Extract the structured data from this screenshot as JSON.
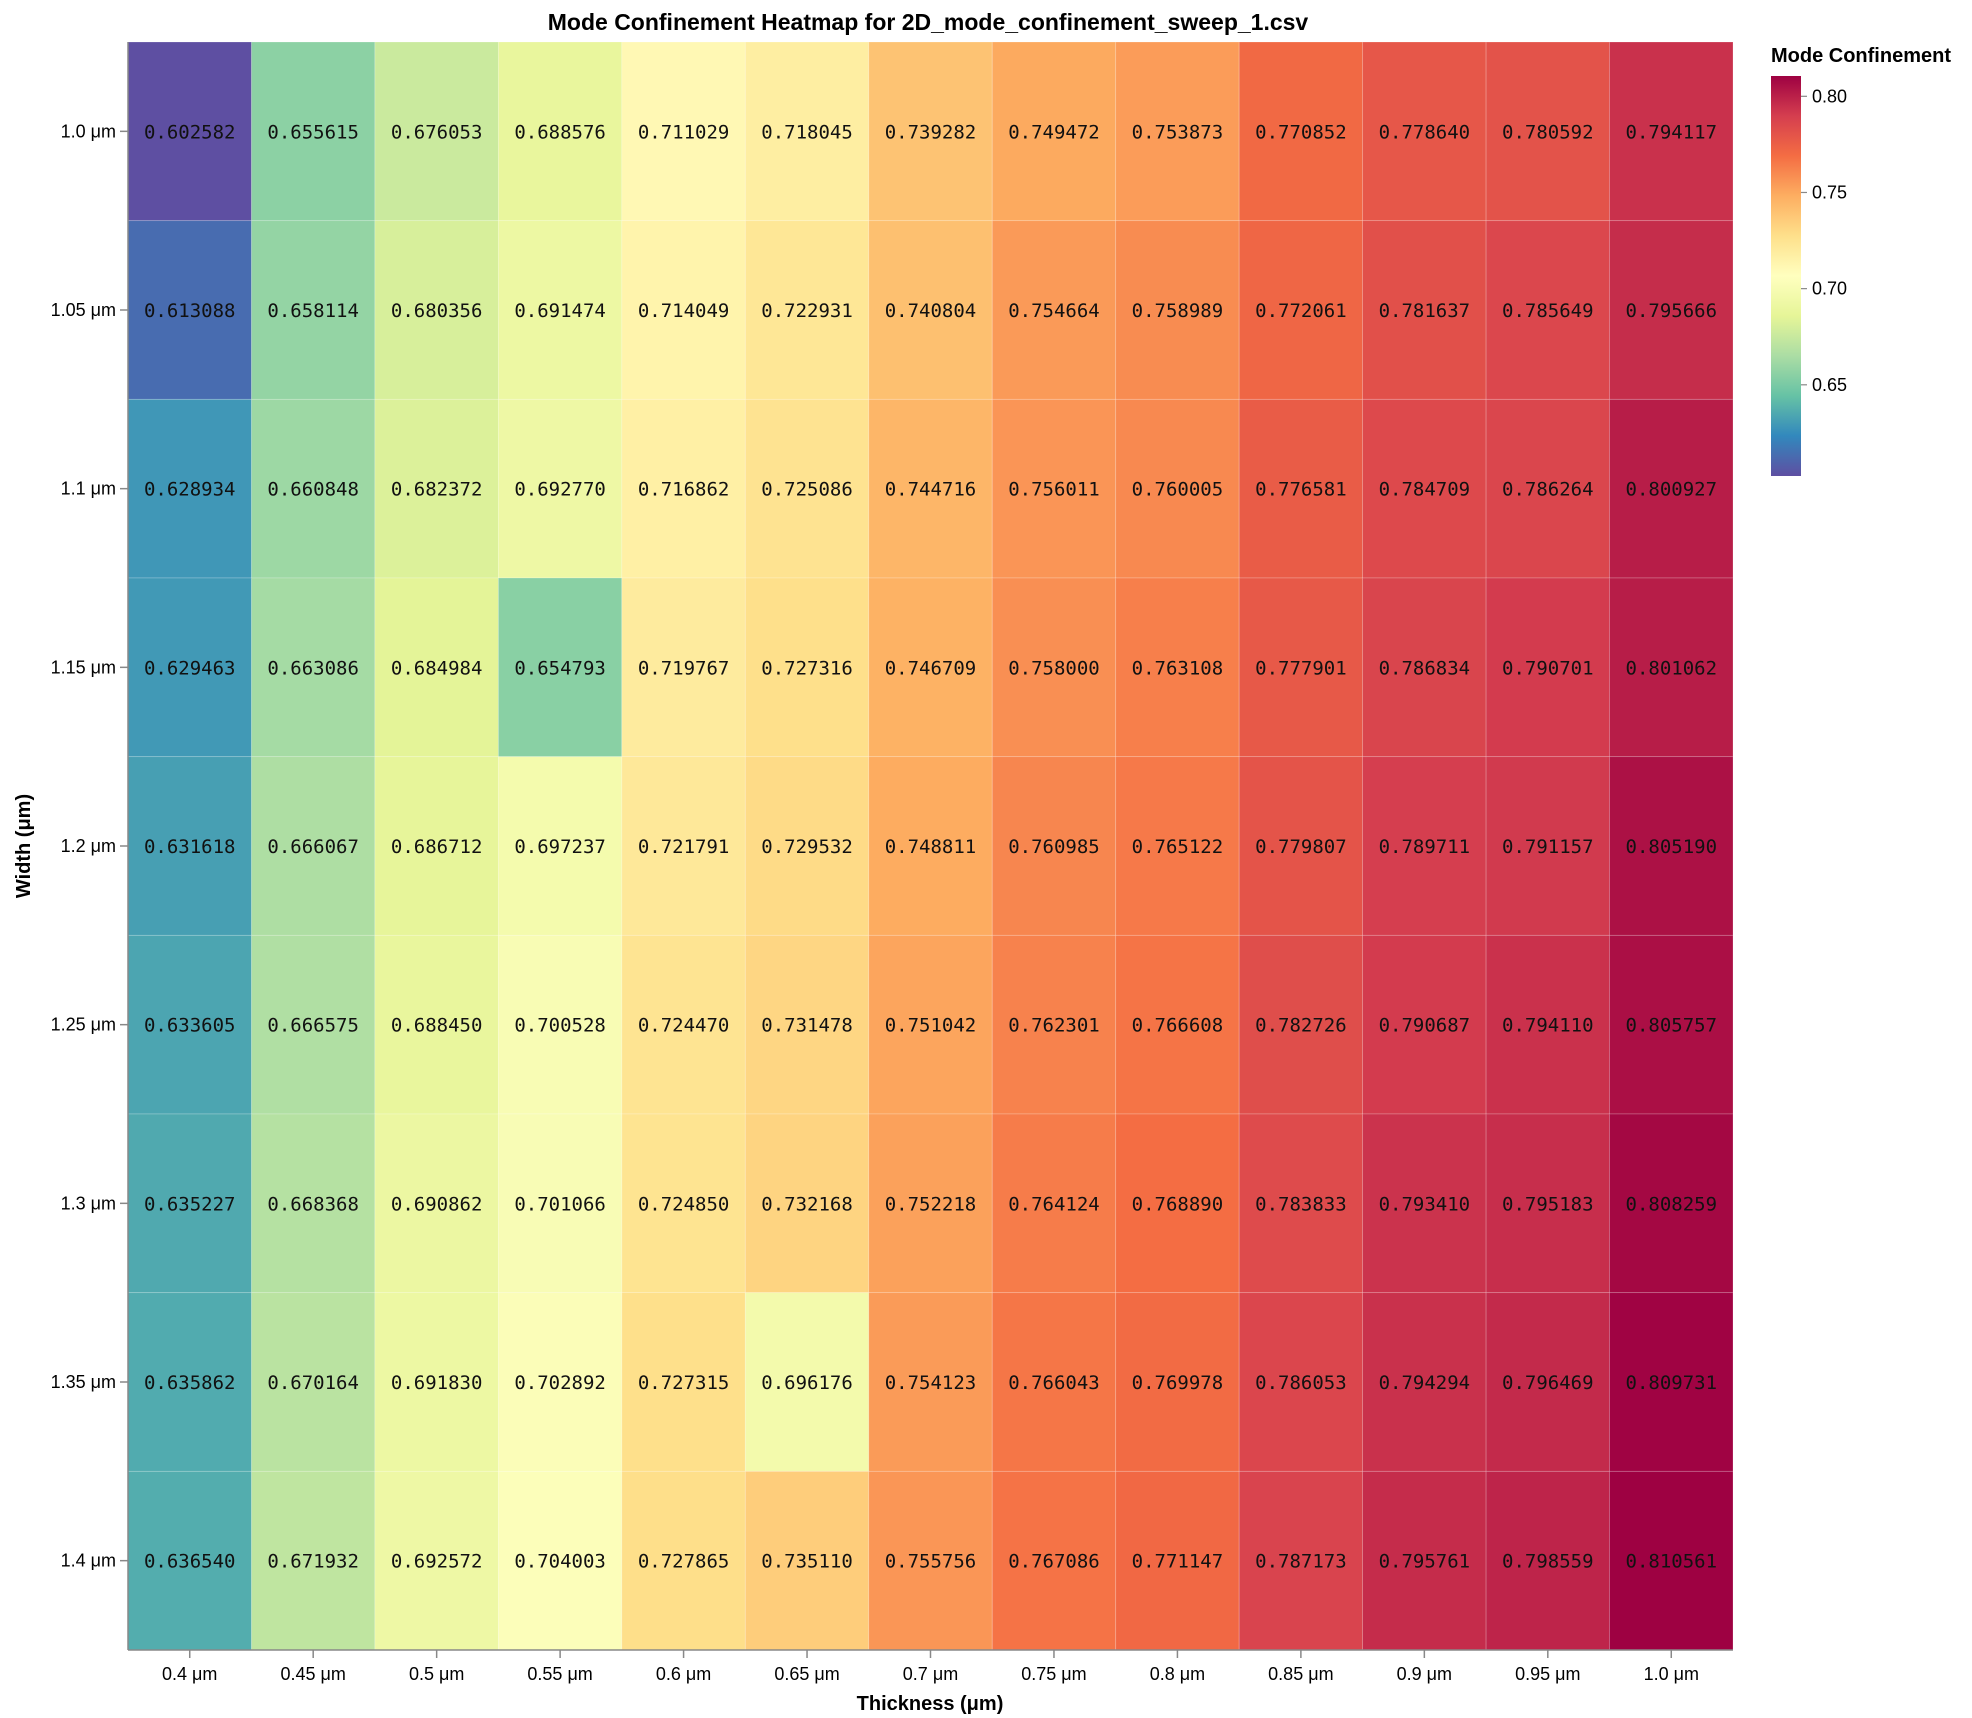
{
  "chart_data": {
    "type": "heatmap",
    "title": "Mode Confinement Heatmap for 2D_mode_confinement_sweep_1.csv",
    "xlabel": "Thickness (μm)",
    "ylabel": "Width (μm)",
    "x_categories": [
      "0.4 μm",
      "0.45 μm",
      "0.5 μm",
      "0.55 μm",
      "0.6 μm",
      "0.65 μm",
      "0.7 μm",
      "0.75 μm",
      "0.8 μm",
      "0.85 μm",
      "0.9 μm",
      "0.95 μm",
      "1.0 μm"
    ],
    "y_categories": [
      "1.0 μm",
      "1.05 μm",
      "1.1 μm",
      "1.15 μm",
      "1.2 μm",
      "1.25 μm",
      "1.3 μm",
      "1.35 μm",
      "1.4 μm"
    ],
    "values": [
      [
        0.602582,
        0.655615,
        0.676053,
        0.688576,
        0.711029,
        0.718045,
        0.739282,
        0.749472,
        0.753873,
        0.770852,
        0.77864,
        0.780592,
        0.794117
      ],
      [
        0.613088,
        0.658114,
        0.680356,
        0.691474,
        0.714049,
        0.722931,
        0.740804,
        0.754664,
        0.758989,
        0.772061,
        0.781637,
        0.785649,
        0.795666
      ],
      [
        0.628934,
        0.660848,
        0.682372,
        0.69277,
        0.716862,
        0.725086,
        0.744716,
        0.756011,
        0.760005,
        0.776581,
        0.784709,
        0.786264,
        0.800927
      ],
      [
        0.629463,
        0.663086,
        0.684984,
        0.654793,
        0.719767,
        0.727316,
        0.746709,
        0.758,
        0.763108,
        0.777901,
        0.786834,
        0.790701,
        0.801062
      ],
      [
        0.631618,
        0.666067,
        0.686712,
        0.697237,
        0.721791,
        0.729532,
        0.748811,
        0.760985,
        0.765122,
        0.779807,
        0.789711,
        0.791157,
        0.80519
      ],
      [
        0.633605,
        0.666575,
        0.68845,
        0.700528,
        0.72447,
        0.731478,
        0.751042,
        0.762301,
        0.766608,
        0.782726,
        0.790687,
        0.79411,
        0.805757
      ],
      [
        0.635227,
        0.668368,
        0.690862,
        0.701066,
        0.72485,
        0.732168,
        0.752218,
        0.764124,
        0.76889,
        0.783833,
        0.79341,
        0.795183,
        0.808259
      ],
      [
        0.635862,
        0.670164,
        0.69183,
        0.702892,
        0.727315,
        0.696176,
        0.754123,
        0.766043,
        0.769978,
        0.786053,
        0.794294,
        0.796469,
        0.809731
      ],
      [
        0.63654,
        0.671932,
        0.692572,
        0.704003,
        0.727865,
        0.73511,
        0.755756,
        0.767086,
        0.771147,
        0.787173,
        0.795761,
        0.798559,
        0.810561
      ]
    ],
    "color_scale": {
      "scheme": "spectral-reversed",
      "title": "Mode Confinement",
      "domain": [
        0.602582,
        0.810561
      ],
      "ticks": [
        0.65,
        0.7,
        0.75,
        0.8
      ],
      "tick_labels": [
        "0.65",
        "0.70",
        "0.75",
        "0.80"
      ]
    },
    "legend_placement": "top-right",
    "grid": false
  }
}
